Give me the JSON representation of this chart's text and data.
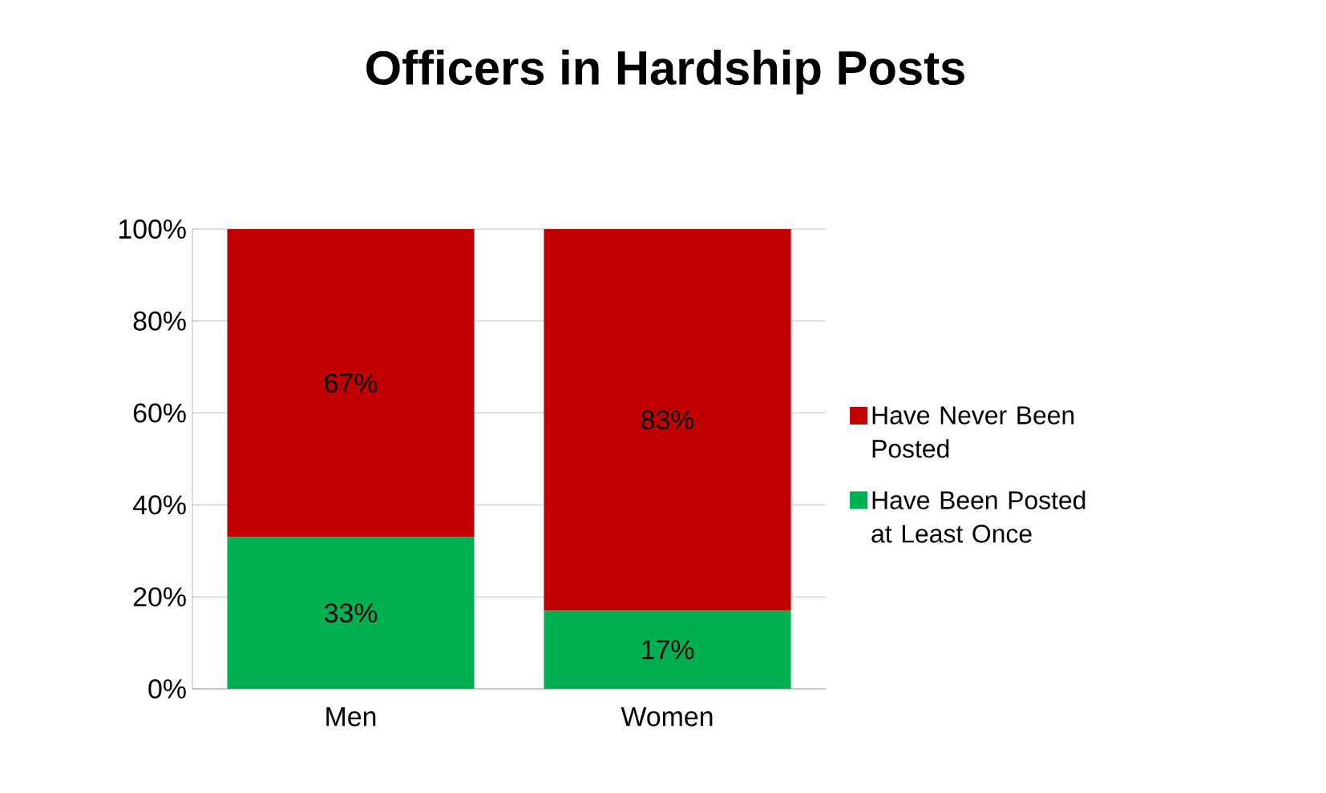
{
  "chart_data": {
    "type": "bar",
    "title": "Officers in Hardship Posts",
    "categories": [
      "Men",
      "Women"
    ],
    "stacked": true,
    "series": [
      {
        "name": "Have Been Posted at Least Once",
        "color": "#00b050",
        "values": [
          33,
          17
        ],
        "value_labels": [
          "33%",
          "17%"
        ]
      },
      {
        "name": "Have Never Been Posted",
        "color": "#c00000",
        "values": [
          67,
          83
        ],
        "value_labels": [
          "67%",
          "83%"
        ]
      }
    ],
    "ylim": [
      0,
      100
    ],
    "yticks": [
      {
        "value": 0,
        "label": "0%"
      },
      {
        "value": 20,
        "label": "20%"
      },
      {
        "value": 40,
        "label": "40%"
      },
      {
        "value": 60,
        "label": "60%"
      },
      {
        "value": 80,
        "label": "80%"
      },
      {
        "value": 100,
        "label": "100%"
      }
    ],
    "grid": "y",
    "legend": "right"
  }
}
